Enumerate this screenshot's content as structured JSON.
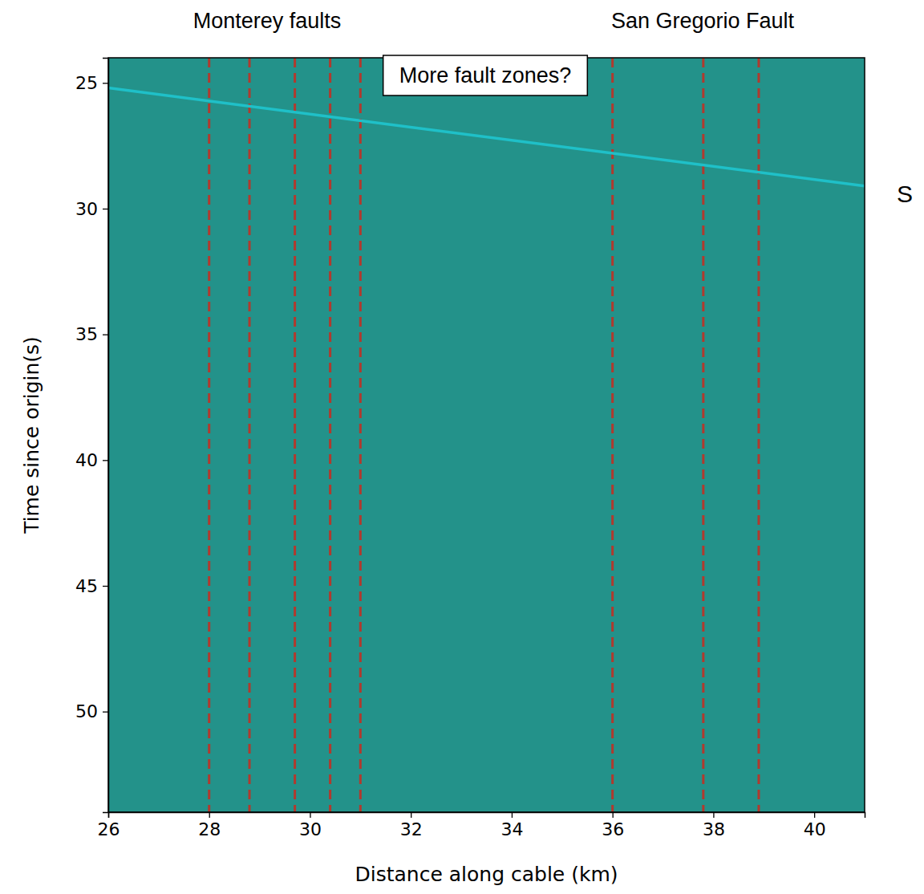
{
  "chart_data": {
    "type": "line",
    "xlabel": "Distance along cable (km)",
    "ylabel": "Time since origin(s)",
    "xlim": [
      26,
      41
    ],
    "xticks": [
      26,
      28,
      30,
      32,
      34,
      36,
      38,
      40
    ],
    "ylim": [
      54,
      24
    ],
    "yticks": [
      25,
      30,
      35,
      40,
      45,
      50
    ],
    "grid": false,
    "s_arrival": {
      "label": "S",
      "x": [
        26,
        41
      ],
      "values": [
        25.2,
        29.1
      ],
      "color": "#1fc0c8"
    },
    "fault_lines": {
      "x": [
        28,
        28.8,
        29.7,
        30.4,
        31.0,
        36.0,
        37.8,
        38.9
      ],
      "color": "#b03a2e",
      "line_style": "dashed"
    },
    "annotations": [
      "Monterey faults",
      "More fault zones?",
      "San Gregorio Fault"
    ]
  }
}
